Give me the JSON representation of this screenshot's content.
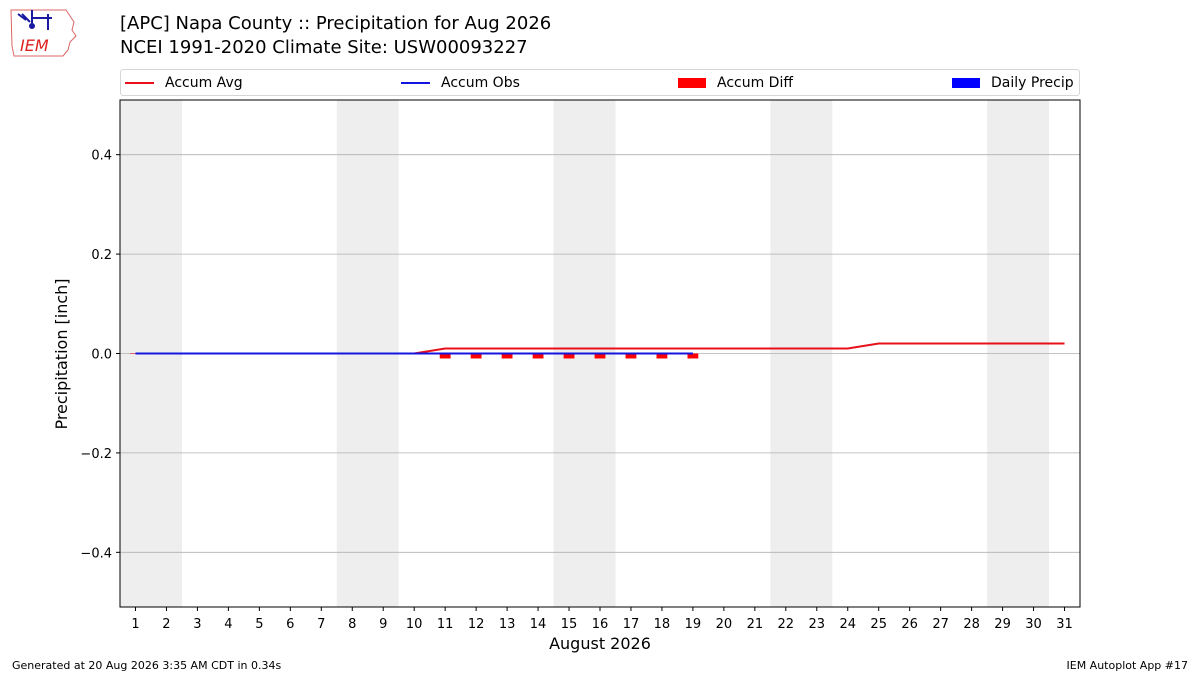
{
  "header": {
    "title_line1": "[APC] Napa County :: Precipitation for Aug 2026",
    "title_line2": "NCEI 1991-2020 Climate Site: USW00093227",
    "logo_text": "IEM"
  },
  "footer": {
    "left": "Generated at 20 Aug 2026 3:35 AM CDT in 0.34s",
    "right": "IEM Autoplot App #17"
  },
  "colors": {
    "accum_avg": "#e8101a",
    "accum_obs": "#1515e0",
    "accum_diff": "#ff0000",
    "daily_precip": "#0000ff",
    "weekend_band": "#eeeeee",
    "grid": "#b0b0b0"
  },
  "chart_data": {
    "type": "line",
    "xlabel": "August 2026",
    "ylabel": "Precipitation [inch]",
    "ylim": [
      -0.51,
      0.51
    ],
    "xlim": [
      0.5,
      31.5
    ],
    "yticks": [
      -0.4,
      -0.2,
      0.0,
      0.2,
      0.4
    ],
    "ytick_labels": [
      "−0.4",
      "−0.2",
      "0.0",
      "0.2",
      "0.4"
    ],
    "xticks": [
      1,
      2,
      3,
      4,
      5,
      6,
      7,
      8,
      9,
      10,
      11,
      12,
      13,
      14,
      15,
      16,
      17,
      18,
      19,
      20,
      21,
      22,
      23,
      24,
      25,
      26,
      27,
      28,
      29,
      30,
      31
    ],
    "xtick_labels": [
      "1",
      "2",
      "3",
      "4",
      "5",
      "6",
      "7",
      "8",
      "9",
      "10",
      "11",
      "12",
      "13",
      "14",
      "15",
      "16",
      "17",
      "18",
      "19",
      "20",
      "21",
      "22",
      "23",
      "24",
      "25",
      "26",
      "27",
      "28",
      "29",
      "30",
      "31"
    ],
    "grid": "horizontal",
    "legend_position": "top",
    "weekend_bands": [
      [
        1,
        2
      ],
      [
        8,
        9
      ],
      [
        15,
        16
      ],
      [
        22,
        23
      ],
      [
        29,
        30
      ]
    ],
    "series": [
      {
        "name": "Accum Avg",
        "kind": "line",
        "x": [
          1,
          2,
          3,
          4,
          5,
          6,
          7,
          8,
          9,
          10,
          11,
          12,
          13,
          14,
          15,
          16,
          17,
          18,
          19,
          20,
          21,
          22,
          23,
          24,
          25,
          26,
          27,
          28,
          29,
          30,
          31
        ],
        "values": [
          0,
          0,
          0,
          0,
          0,
          0,
          0,
          0,
          0,
          0,
          0.01,
          0.01,
          0.01,
          0.01,
          0.01,
          0.01,
          0.01,
          0.01,
          0.01,
          0.01,
          0.01,
          0.01,
          0.01,
          0.01,
          0.02,
          0.02,
          0.02,
          0.02,
          0.02,
          0.02,
          0.02
        ]
      },
      {
        "name": "Accum Obs",
        "kind": "line",
        "x": [
          1,
          2,
          3,
          4,
          5,
          6,
          7,
          8,
          9,
          10,
          11,
          12,
          13,
          14,
          15,
          16,
          17,
          18,
          19
        ],
        "values": [
          0,
          0,
          0,
          0,
          0,
          0,
          0,
          0,
          0,
          0,
          0,
          0,
          0,
          0,
          0,
          0,
          0,
          0,
          0
        ]
      },
      {
        "name": "Accum Diff",
        "kind": "bar",
        "x": [
          1,
          2,
          3,
          4,
          5,
          6,
          7,
          8,
          9,
          10,
          11,
          12,
          13,
          14,
          15,
          16,
          17,
          18,
          19
        ],
        "values": [
          0,
          0,
          0,
          0,
          0,
          0,
          0,
          0,
          0,
          0,
          -0.01,
          -0.01,
          -0.01,
          -0.01,
          -0.01,
          -0.01,
          -0.01,
          -0.01,
          -0.01
        ]
      },
      {
        "name": "Daily Precip",
        "kind": "bar",
        "x": [
          1,
          2,
          3,
          4,
          5,
          6,
          7,
          8,
          9,
          10,
          11,
          12,
          13,
          14,
          15,
          16,
          17,
          18,
          19
        ],
        "values": [
          0,
          0,
          0,
          0,
          0,
          0,
          0,
          0,
          0,
          0,
          0,
          0,
          0,
          0,
          0,
          0,
          0,
          0,
          0
        ]
      }
    ]
  }
}
